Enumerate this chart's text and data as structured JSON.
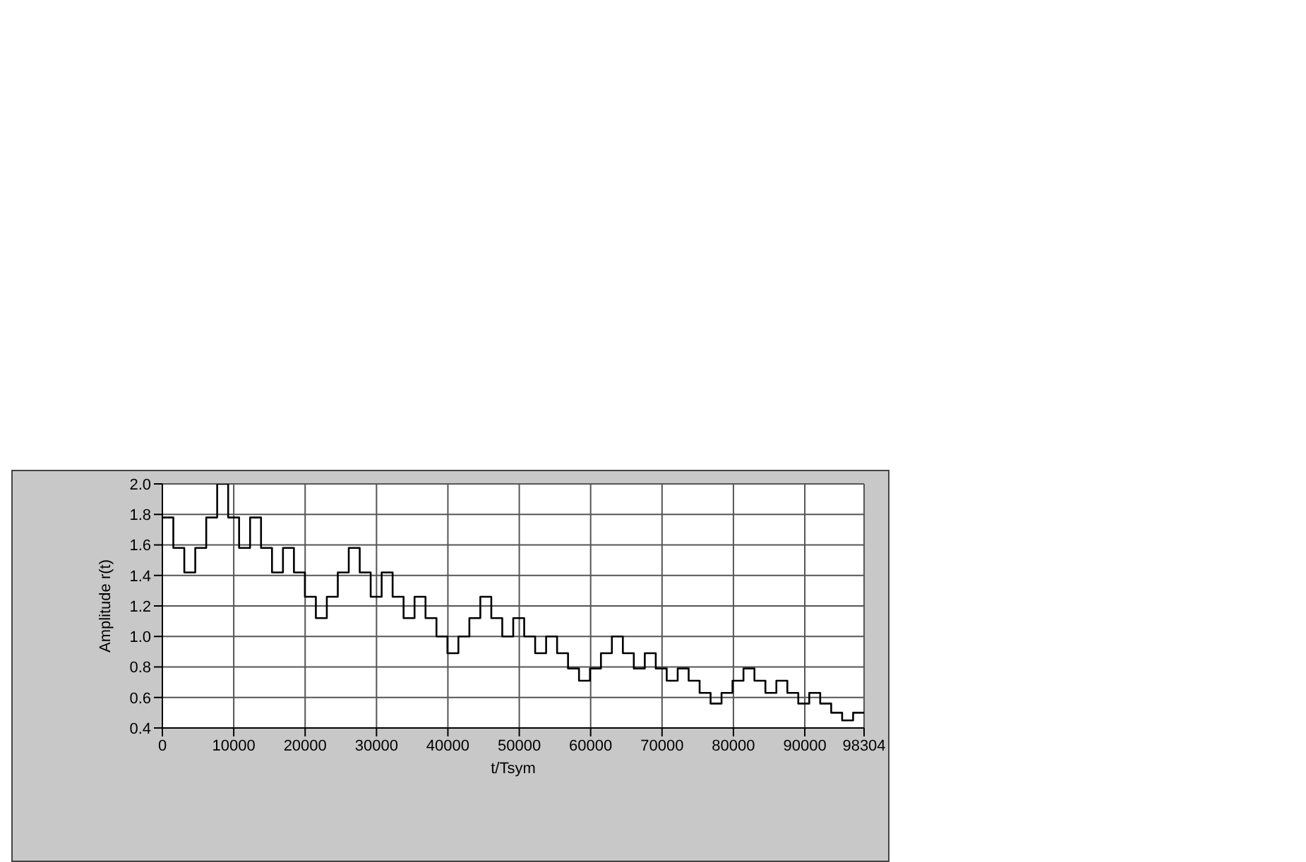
{
  "chart_data": {
    "type": "step",
    "xlabel": "t/Tsym",
    "ylabel": "Amplitude r(t)",
    "x": [
      0,
      1536,
      3072,
      4608,
      6144,
      7680,
      9216,
      10752,
      12288,
      13824,
      15360,
      16896,
      18432,
      19968,
      21504,
      23040,
      24576,
      26112,
      27648,
      29184,
      30720,
      32256,
      33792,
      35328,
      36864,
      38400,
      39936,
      41472,
      43008,
      44544,
      46080,
      47616,
      49152,
      50688,
      52224,
      53760,
      55296,
      56832,
      58368,
      59904,
      61440,
      62976,
      64512,
      66048,
      67584,
      69120,
      70656,
      72192,
      73728,
      75264,
      76800,
      78336,
      79872,
      81408,
      82944,
      84480,
      86016,
      87552,
      89088,
      90624,
      92160,
      93696,
      95232,
      96768,
      98304
    ],
    "series": [
      {
        "color": "#000000",
        "values": [
          1.78,
          1.58,
          1.42,
          1.58,
          1.78,
          2.0,
          1.78,
          1.58,
          1.78,
          1.58,
          1.42,
          1.58,
          1.42,
          1.26,
          1.12,
          1.26,
          1.42,
          1.58,
          1.42,
          1.26,
          1.42,
          1.26,
          1.12,
          1.26,
          1.12,
          1.0,
          0.89,
          1.0,
          1.12,
          1.26,
          1.12,
          1.0,
          1.12,
          1.0,
          0.89,
          1.0,
          0.89,
          0.79,
          0.71,
          0.79,
          0.89,
          1.0,
          0.89,
          0.79,
          0.89,
          0.79,
          0.71,
          0.79,
          0.71,
          0.63,
          0.56,
          0.63,
          0.71,
          0.79,
          0.71,
          0.63,
          0.71,
          0.63,
          0.56,
          0.63,
          0.56,
          0.5,
          0.45,
          0.5,
          0.5
        ]
      }
    ],
    "xlim": [
      0,
      98304
    ],
    "xticks": [
      0,
      10000,
      20000,
      30000,
      40000,
      50000,
      60000,
      70000,
      80000,
      90000,
      98304
    ],
    "ylim": [
      0.4,
      2.0
    ],
    "yticks": [
      {
        "value": 0.4,
        "label": "0.4"
      },
      {
        "value": 0.6,
        "label": "0.6"
      },
      {
        "value": 0.8,
        "label": "0.8"
      },
      {
        "value": 1.0,
        "label": "1.0"
      },
      {
        "value": 1.2,
        "label": "1.2"
      },
      {
        "value": 1.4,
        "label": "1.4"
      },
      {
        "value": 1.6,
        "label": "1.6"
      },
      {
        "value": 1.8,
        "label": "1.8"
      },
      {
        "value": 2.0,
        "label": "2.0"
      }
    ],
    "grid": true,
    "legend": false,
    "marker": "none",
    "line_style": "solid"
  }
}
